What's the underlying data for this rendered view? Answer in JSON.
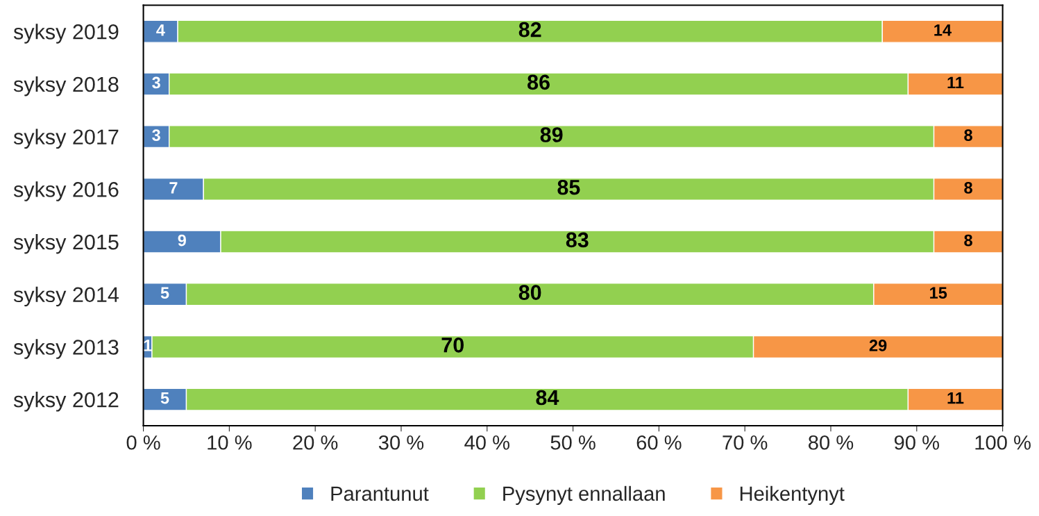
{
  "chart_data": {
    "type": "bar",
    "orientation": "horizontal",
    "stacked": true,
    "data_labels": true,
    "categories": [
      "syksy 2019",
      "syksy 2018",
      "syksy 2017",
      "syksy 2016",
      "syksy 2015",
      "syksy 2014",
      "syksy 2013",
      "syksy 2012"
    ],
    "series": [
      {
        "name": "Parantunut",
        "color": "#4f81bd",
        "values": [
          4,
          3,
          3,
          7,
          9,
          5,
          1,
          5
        ]
      },
      {
        "name": "Pysynyt ennallaan",
        "color": "#92d050",
        "values": [
          82,
          86,
          89,
          85,
          83,
          80,
          70,
          84
        ]
      },
      {
        "name": "Heikentynyt",
        "color": "#f79646",
        "values": [
          14,
          11,
          8,
          8,
          8,
          15,
          29,
          11
        ]
      }
    ],
    "xlim": [
      0,
      100
    ],
    "xticks": [
      {
        "value": 0,
        "label": "0 %"
      },
      {
        "value": 10,
        "label": "10 %"
      },
      {
        "value": 20,
        "label": "20 %"
      },
      {
        "value": 30,
        "label": "30 %"
      },
      {
        "value": 40,
        "label": "40 %"
      },
      {
        "value": 50,
        "label": "50 %"
      },
      {
        "value": 60,
        "label": "60 %"
      },
      {
        "value": 70,
        "label": "70 %"
      },
      {
        "value": 80,
        "label": "80 %"
      },
      {
        "value": 90,
        "label": "90 %"
      },
      {
        "value": 100,
        "label": "100 %"
      }
    ],
    "grid": false,
    "legend": "bottom"
  }
}
